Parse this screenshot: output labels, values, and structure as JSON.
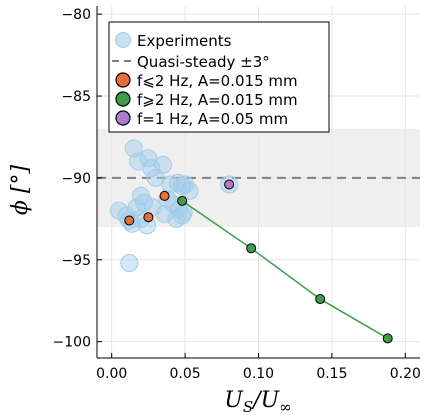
{
  "chart_data": {
    "type": "scatter",
    "xlabel": "U_S/U_∞",
    "ylabel": "ϕ [°]",
    "xlim": [
      -0.01,
      0.21
    ],
    "ylim": [
      -101,
      -79.5
    ],
    "xticks": [
      "0.00",
      "0.05",
      "0.10",
      "0.15",
      "0.20"
    ],
    "yticks": [
      "−80",
      "−85",
      "−90",
      "−95",
      "−100"
    ],
    "grid": true,
    "legend_position": "top-left",
    "band": {
      "label": "Quasi-steady ±3°",
      "center": -90,
      "half_width": 3
    },
    "series": [
      {
        "name": "Experiments",
        "color": "#9fcdea",
        "x": [
          0.015,
          0.018,
          0.025,
          0.027,
          0.03,
          0.035,
          0.04,
          0.045,
          0.048,
          0.05,
          0.053,
          0.02,
          0.022,
          0.028,
          0.038,
          0.042,
          0.046,
          0.049,
          0.005,
          0.01,
          0.012,
          0.014,
          0.017,
          0.02,
          0.024,
          0.036,
          0.044,
          0.048,
          0.012,
          0.08
        ],
        "y": [
          -88.2,
          -89.0,
          -88.8,
          -89.4,
          -90.0,
          -89.2,
          -90.4,
          -90.3,
          -90.5,
          -90.4,
          -90.8,
          -91.1,
          -91.5,
          -91.8,
          -91.3,
          -91.6,
          -91.9,
          -92.1,
          -92.0,
          -92.3,
          -92.6,
          -92.8,
          -91.8,
          -92.5,
          -92.9,
          -92.2,
          -92.5,
          -92.3,
          -95.2,
          -90.4
        ]
      },
      {
        "name": "f⩽2 Hz, A=0.015 mm",
        "color": "#e2703d",
        "x": [
          0.012,
          0.025,
          0.036
        ],
        "y": [
          -92.6,
          -92.4,
          -91.1
        ]
      },
      {
        "name": "f⩾2 Hz, A=0.015 mm",
        "color": "#3d9e48",
        "x": [
          0.048,
          0.095,
          0.142,
          0.188
        ],
        "y": [
          -91.4,
          -94.3,
          -97.4,
          -99.8
        ]
      },
      {
        "name": "f=1 Hz, A=0.05 mm",
        "color": "#b27ad2",
        "x": [
          0.08
        ],
        "y": [
          -90.4
        ]
      }
    ]
  }
}
